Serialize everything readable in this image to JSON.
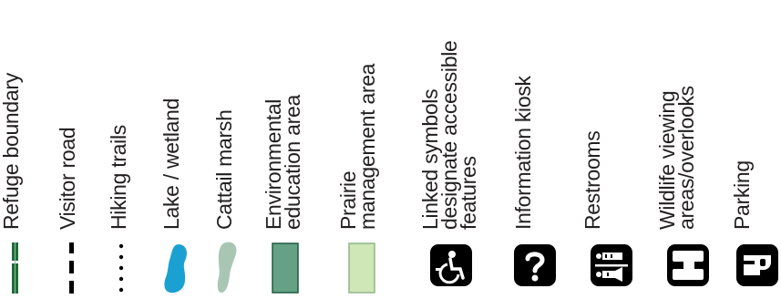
{
  "legend": {
    "items": [
      {
        "id": "refuge-boundary",
        "label": "Refuge boundary",
        "icon": "refuge-boundary-line",
        "color": "#1f6b3a"
      },
      {
        "id": "visitor-road",
        "label": "Visitor road",
        "icon": "dashed-road-line",
        "color": "#000000"
      },
      {
        "id": "hiking-trails",
        "label": "Hiking trails",
        "icon": "dotted-trail-line",
        "color": "#000000"
      },
      {
        "id": "lake-wetland",
        "label": "Lake / wetland",
        "icon": "lake-shape",
        "color": "#1ba1d1"
      },
      {
        "id": "cattail-marsh",
        "label": "Cattail marsh",
        "icon": "marsh-shape",
        "color": "#a8c6b3"
      },
      {
        "id": "environmental-education",
        "label": "Environmental\neducation area",
        "icon": "green-square",
        "color": "#65a285"
      },
      {
        "id": "prairie-management",
        "label": "Prairie\nmanagement area",
        "icon": "light-green-square",
        "color": "#cfe6b6"
      },
      {
        "id": "accessible",
        "label": "Linked symbols\ndesignate accessible\nfeatures",
        "icon": "wheelchair-icon",
        "color": "#000000"
      },
      {
        "id": "information",
        "label": "Information kiosk",
        "icon": "question-icon",
        "color": "#000000"
      },
      {
        "id": "restrooms",
        "label": "Restrooms",
        "icon": "restroom-icon",
        "color": "#000000"
      },
      {
        "id": "wildlife",
        "label": "Wildlife viewing\nareas/overlooks",
        "icon": "binoculars-icon",
        "color": "#000000"
      },
      {
        "id": "parking",
        "label": "Parking",
        "icon": "parking-icon",
        "color": "#000000"
      }
    ]
  }
}
